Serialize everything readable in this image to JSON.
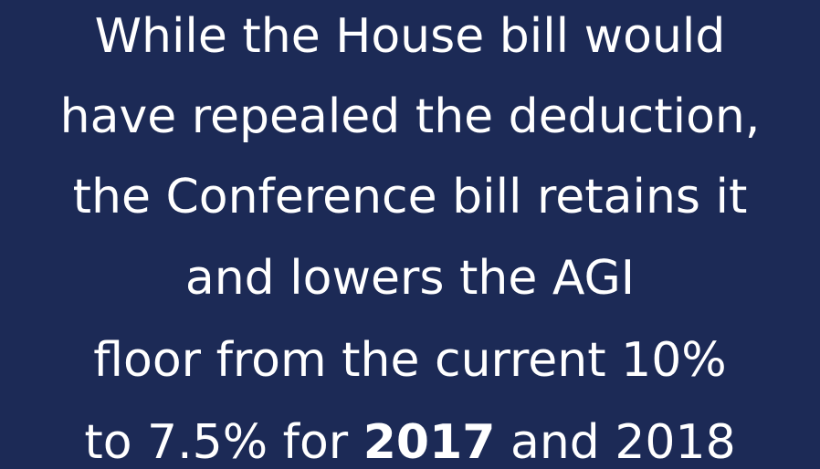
{
  "slide": {
    "lines": [
      "While the House bill would",
      "have repealed the deduction,",
      "the Conference bill retains it",
      "and lowers the AGI",
      "floor from the current 10%",
      [
        "to 7.5% for ",
        "2017",
        " and 2018"
      ]
    ]
  }
}
